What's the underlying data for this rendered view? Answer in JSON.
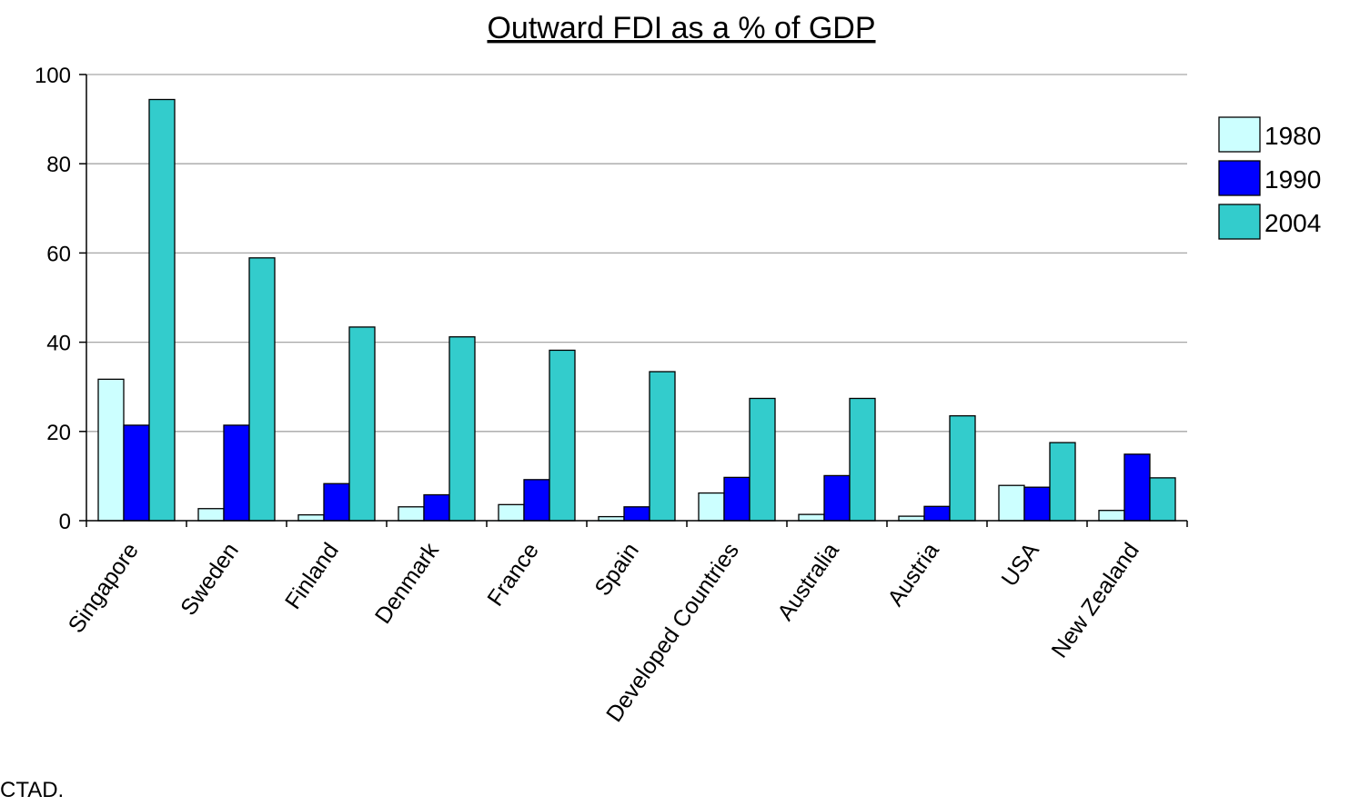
{
  "chart_data": {
    "type": "bar",
    "title": "Outward FDI as a % of GDP",
    "xlabel": "",
    "ylabel": "",
    "ylim": [
      0,
      100
    ],
    "yticks": [
      0,
      20,
      40,
      60,
      80,
      100
    ],
    "grid": true,
    "legend": "right",
    "categories": [
      "Singapore",
      "Sweden",
      "Finland",
      "Denmark",
      "France",
      "Spain",
      "Developed Countries",
      "Australia",
      "Austria",
      "USA",
      "New Zealand"
    ],
    "series": [
      {
        "name": "1980",
        "color": "#ccffff",
        "values": [
          31.7,
          2.7,
          1.3,
          3.1,
          3.6,
          0.9,
          6.2,
          1.4,
          1.0,
          7.9,
          2.3
        ]
      },
      {
        "name": "1990",
        "color": "#0000ff",
        "values": [
          21.4,
          21.4,
          8.3,
          5.8,
          9.2,
          3.1,
          9.7,
          10.1,
          3.2,
          7.5,
          14.9
        ]
      },
      {
        "name": "2004",
        "color": "#33cccc",
        "values": [
          94.4,
          58.9,
          43.4,
          41.2,
          38.2,
          33.4,
          27.4,
          27.4,
          23.5,
          17.5,
          9.6
        ]
      }
    ]
  },
  "footnote": "CTAD."
}
